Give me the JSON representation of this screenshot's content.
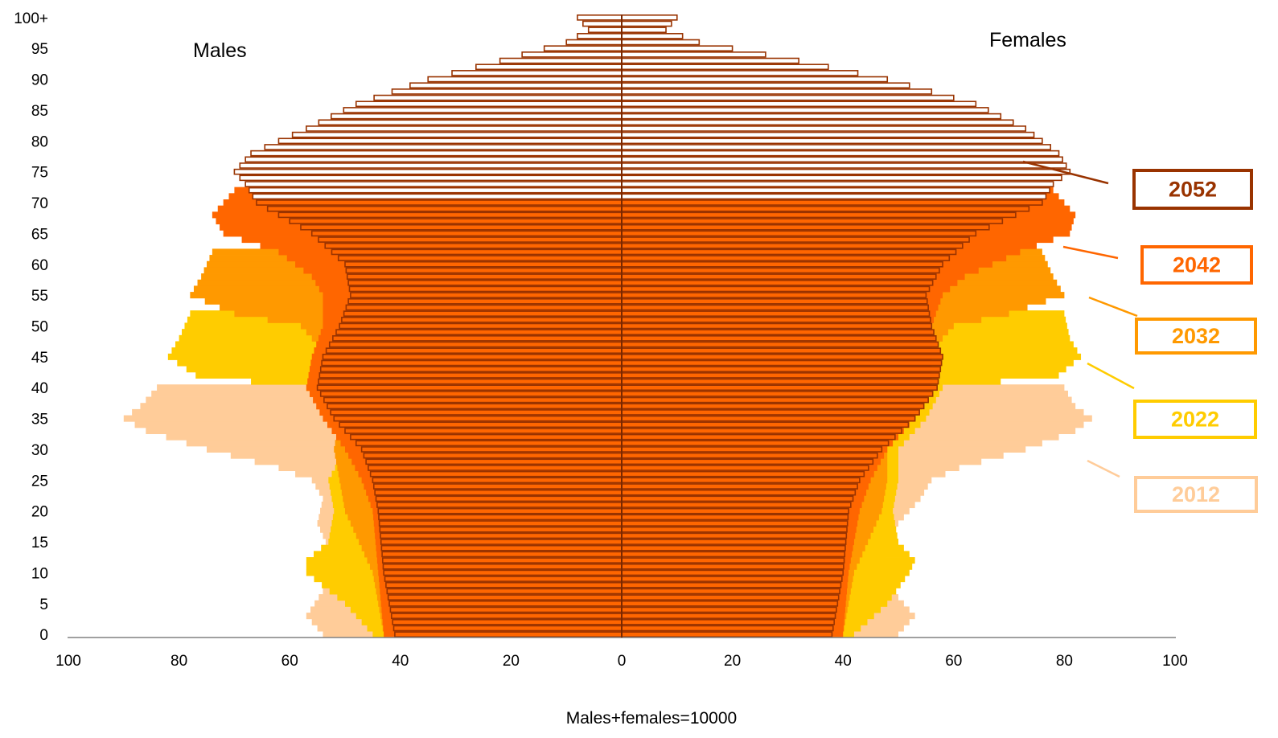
{
  "chart_data": {
    "type": "bar",
    "subtype": "population-pyramid-overlay",
    "footnote": "Males+females=10000",
    "left_label": "Males",
    "right_label": "Females",
    "x_ticks": [
      "100",
      "80",
      "60",
      "40",
      "20",
      "0",
      "20",
      "40",
      "60",
      "80",
      "100"
    ],
    "y_ticks": [
      "0",
      "5",
      "10",
      "15",
      "20",
      "25",
      "30",
      "35",
      "40",
      "45",
      "50",
      "55",
      "60",
      "65",
      "70",
      "75",
      "80",
      "85",
      "90",
      "95",
      "100+"
    ],
    "xlim": [
      -100,
      100
    ],
    "age_range": [
      0,
      100
    ],
    "grid": false,
    "series": [
      {
        "name": "2012",
        "color": "#ffcc99",
        "style": "filled",
        "anchors": [
          {
            "age": 0,
            "male": 54,
            "female": 50
          },
          {
            "age": 3,
            "male": 57,
            "female": 53
          },
          {
            "age": 7,
            "male": 54,
            "female": 49
          },
          {
            "age": 10,
            "male": 53,
            "female": 47
          },
          {
            "age": 14,
            "male": 53,
            "female": 48
          },
          {
            "age": 18,
            "male": 55,
            "female": 50
          },
          {
            "age": 22,
            "male": 54,
            "female": 54
          },
          {
            "age": 25,
            "male": 56,
            "female": 56
          },
          {
            "age": 27,
            "male": 62,
            "female": 61
          },
          {
            "age": 30,
            "male": 75,
            "female": 73
          },
          {
            "age": 33,
            "male": 86,
            "female": 82
          },
          {
            "age": 35,
            "male": 90,
            "female": 85
          },
          {
            "age": 37,
            "male": 87,
            "female": 82
          },
          {
            "age": 40,
            "male": 84,
            "female": 80
          }
        ]
      },
      {
        "name": "2022",
        "color": "#ffcc00",
        "style": "filled",
        "anchors": [
          {
            "age": 0,
            "male": 45,
            "female": 42
          },
          {
            "age": 5,
            "male": 50,
            "female": 48
          },
          {
            "age": 10,
            "male": 57,
            "female": 52
          },
          {
            "age": 12,
            "male": 57,
            "female": 53
          },
          {
            "age": 15,
            "male": 53,
            "female": 50
          },
          {
            "age": 20,
            "male": 52,
            "female": 49
          },
          {
            "age": 25,
            "male": 53,
            "female": 50
          },
          {
            "age": 30,
            "male": 50,
            "female": 50
          },
          {
            "age": 35,
            "male": 52,
            "female": 55
          },
          {
            "age": 40,
            "male": 57,
            "female": 58
          },
          {
            "age": 42,
            "male": 77,
            "female": 79
          },
          {
            "age": 45,
            "male": 82,
            "female": 83
          },
          {
            "age": 48,
            "male": 80,
            "female": 81
          },
          {
            "age": 52,
            "male": 78,
            "female": 80
          }
        ]
      },
      {
        "name": "2032",
        "color": "#ff9900",
        "style": "filled",
        "anchors": [
          {
            "age": 0,
            "male": 43,
            "female": 40
          },
          {
            "age": 10,
            "male": 45,
            "female": 42
          },
          {
            "age": 20,
            "male": 50,
            "female": 47
          },
          {
            "age": 25,
            "male": 51,
            "female": 48
          },
          {
            "age": 30,
            "male": 52,
            "female": 48
          },
          {
            "age": 40,
            "male": 50,
            "female": 50
          },
          {
            "age": 45,
            "male": 53,
            "female": 55
          },
          {
            "age": 50,
            "male": 58,
            "female": 60
          },
          {
            "age": 52,
            "male": 70,
            "female": 70
          },
          {
            "age": 55,
            "male": 78,
            "female": 80
          },
          {
            "age": 58,
            "male": 76,
            "female": 78
          },
          {
            "age": 62,
            "male": 74,
            "female": 76
          }
        ]
      },
      {
        "name": "2042",
        "color": "#ff6600",
        "style": "filled",
        "anchors": [
          {
            "age": 0,
            "male": 43,
            "female": 40
          },
          {
            "age": 10,
            "male": 44,
            "female": 41
          },
          {
            "age": 20,
            "male": 45,
            "female": 43
          },
          {
            "age": 25,
            "male": 47,
            "female": 45
          },
          {
            "age": 30,
            "male": 50,
            "female": 48
          },
          {
            "age": 35,
            "male": 54,
            "female": 53
          },
          {
            "age": 40,
            "male": 57,
            "female": 56
          },
          {
            "age": 45,
            "male": 56,
            "female": 56
          },
          {
            "age": 50,
            "male": 54,
            "female": 56
          },
          {
            "age": 55,
            "male": 54,
            "female": 58
          },
          {
            "age": 58,
            "male": 56,
            "female": 62
          },
          {
            "age": 62,
            "male": 62,
            "female": 72
          },
          {
            "age": 65,
            "male": 72,
            "female": 81
          },
          {
            "age": 68,
            "male": 74,
            "female": 82
          },
          {
            "age": 72,
            "male": 70,
            "female": 78
          }
        ]
      },
      {
        "name": "2052",
        "color": "#993300",
        "style": "outline",
        "anchors": [
          {
            "age": 0,
            "male": 41,
            "female": 38
          },
          {
            "age": 10,
            "male": 43,
            "female": 40
          },
          {
            "age": 20,
            "male": 44,
            "female": 41
          },
          {
            "age": 25,
            "male": 45,
            "female": 43
          },
          {
            "age": 30,
            "male": 47,
            "female": 47
          },
          {
            "age": 35,
            "male": 52,
            "female": 53
          },
          {
            "age": 40,
            "male": 55,
            "female": 57
          },
          {
            "age": 45,
            "male": 54,
            "female": 58
          },
          {
            "age": 50,
            "male": 51,
            "female": 56
          },
          {
            "age": 55,
            "male": 49,
            "female": 55
          },
          {
            "age": 60,
            "male": 50,
            "female": 58
          },
          {
            "age": 65,
            "male": 56,
            "female": 64
          },
          {
            "age": 70,
            "male": 66,
            "female": 76
          },
          {
            "age": 73,
            "male": 68,
            "female": 78
          },
          {
            "age": 75,
            "male": 70,
            "female": 81
          },
          {
            "age": 78,
            "male": 67,
            "female": 79
          },
          {
            "age": 82,
            "male": 57,
            "female": 73
          },
          {
            "age": 86,
            "male": 48,
            "female": 64
          },
          {
            "age": 90,
            "male": 35,
            "female": 48
          },
          {
            "age": 93,
            "male": 22,
            "female": 32
          },
          {
            "age": 96,
            "male": 10,
            "female": 14
          },
          {
            "age": 98,
            "male": 6,
            "female": 8
          },
          {
            "age": 100,
            "male": 8,
            "female": 10
          }
        ]
      }
    ],
    "legend": [
      {
        "label": "2052",
        "color": "#993300"
      },
      {
        "label": "2042",
        "color": "#ff6600"
      },
      {
        "label": "2032",
        "color": "#ff9900"
      },
      {
        "label": "2022",
        "color": "#ffcc00"
      },
      {
        "label": "2012",
        "color": "#ffcc99"
      }
    ]
  }
}
